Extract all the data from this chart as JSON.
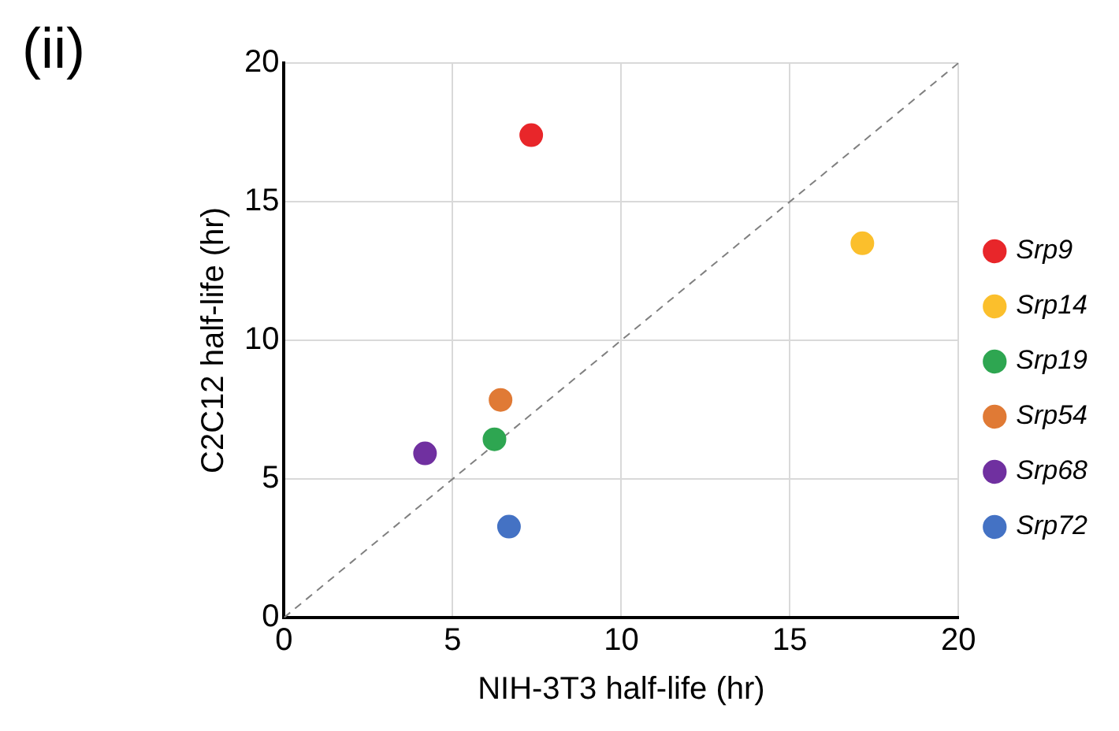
{
  "chart_data": {
    "type": "scatter",
    "title": "(ii)",
    "xlabel": "NIH-3T3 half-life (hr)",
    "ylabel": "C2C12 half-life (hr)",
    "xlim": [
      0,
      20
    ],
    "ylim": [
      0,
      20
    ],
    "xticks": [
      0,
      5,
      10,
      15,
      20
    ],
    "yticks": [
      0,
      5,
      10,
      15,
      20
    ],
    "grid": true,
    "legend": "right",
    "marker": "circle",
    "series": [
      {
        "name": "Srp9",
        "color": "#e8262a",
        "x": [
          7.33
        ],
        "values": [
          17.4
        ]
      },
      {
        "name": "Srp14",
        "color": "#fbbf2c",
        "x": [
          17.15
        ],
        "values": [
          13.5
        ]
      },
      {
        "name": "Srp19",
        "color": "#2ea651",
        "x": [
          6.24
        ],
        "values": [
          6.43
        ]
      },
      {
        "name": "Srp54",
        "color": "#e07a35",
        "x": [
          6.42
        ],
        "values": [
          7.85
        ]
      },
      {
        "name": "Srp68",
        "color": "#7030a0",
        "x": [
          4.18
        ],
        "values": [
          5.92
        ]
      },
      {
        "name": "Srp72",
        "color": "#4472c4",
        "x": [
          6.67
        ],
        "values": [
          3.28
        ]
      },
      {
        "type": "line",
        "color": "#808080",
        "line_style": "dashed",
        "marker": "none",
        "x": [
          0,
          20
        ],
        "values": [
          0,
          20
        ]
      }
    ]
  }
}
